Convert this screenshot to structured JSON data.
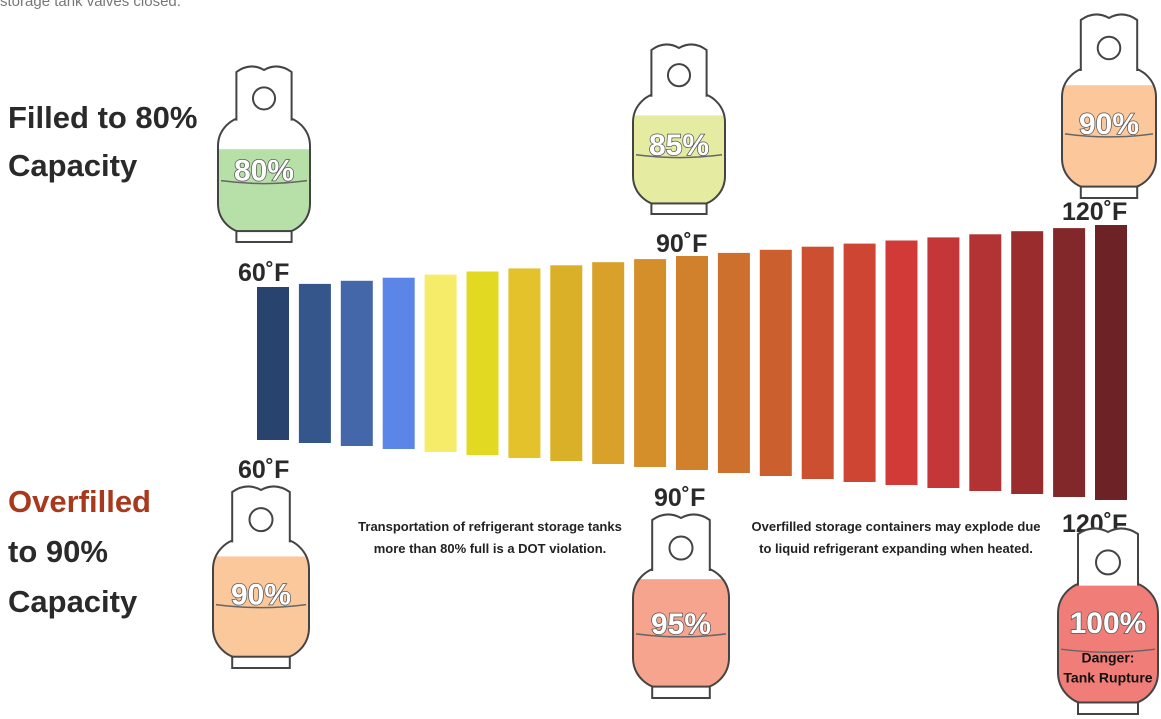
{
  "header": {
    "fragment": "storage tank valves closed."
  },
  "left": {
    "normal": {
      "line1": "Filled to 80%",
      "line2": "Capacity"
    },
    "over": {
      "line1": "Overfilled",
      "line2": "to 90%",
      "line3": "Capacity"
    }
  },
  "top_row": {
    "temps": [
      "60˚F",
      "90˚F",
      "120˚F"
    ],
    "tanks": [
      "80%",
      "85%",
      "90%"
    ]
  },
  "bottom_row": {
    "temps": [
      "60˚F",
      "90˚F",
      "120˚F"
    ],
    "tanks": [
      "90%",
      "95%",
      "100%"
    ],
    "danger": {
      "line1": "Danger:",
      "line2": "Tank Rupture"
    }
  },
  "notes": [
    {
      "line1": "Transportation of refrigerant storage tanks",
      "line2": "more than 80% full is a DOT violation."
    },
    {
      "line1": "Overfilled storage containers may explode due",
      "line2": "to liquid refrigerant expanding when heated."
    }
  ]
}
